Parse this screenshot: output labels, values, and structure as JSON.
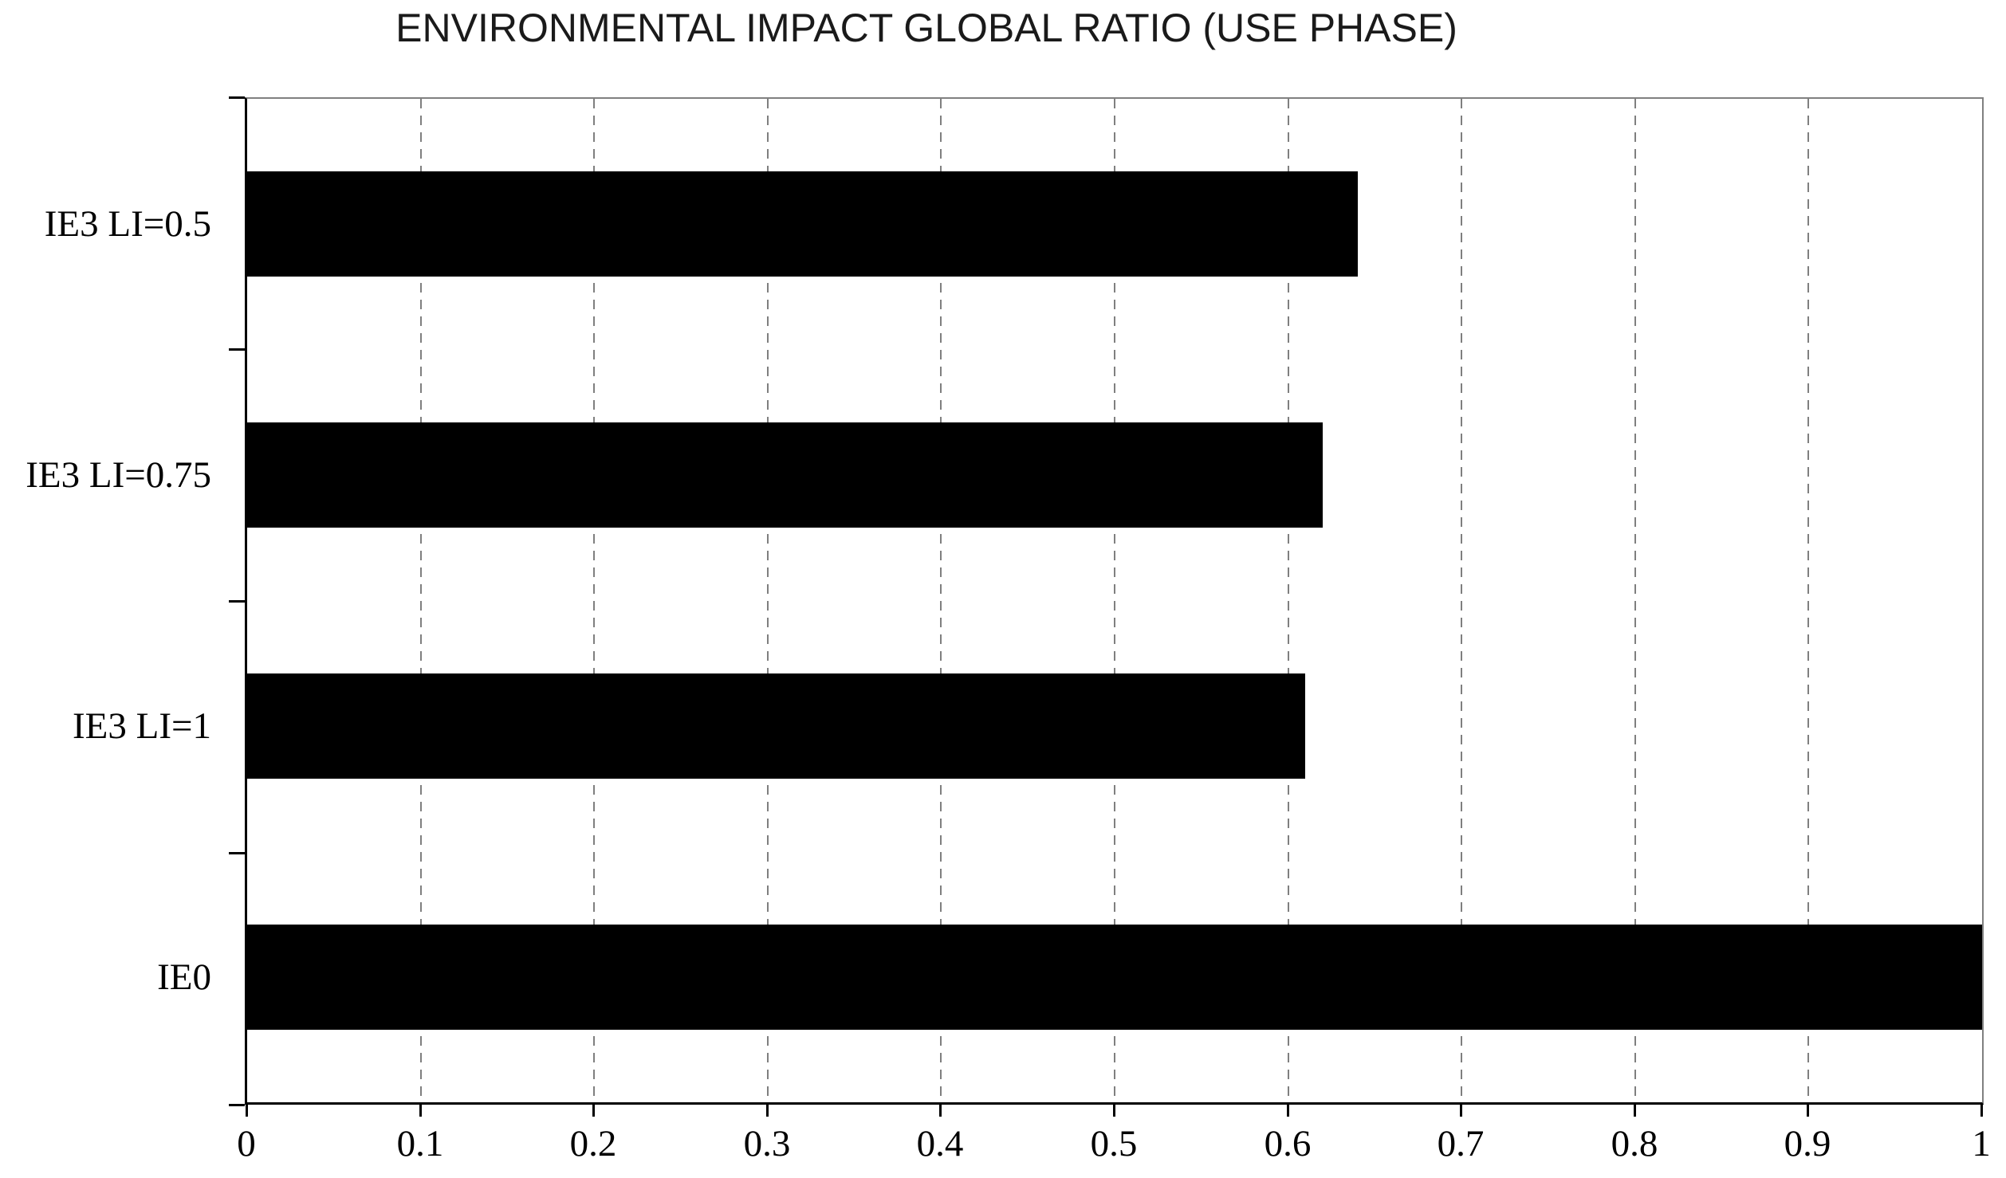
{
  "chart_data": {
    "type": "bar",
    "orientation": "horizontal",
    "title": "ENVIRONMENTAL IMPACT GLOBAL RATIO (USE PHASE)",
    "categories": [
      "IE3 LI=0.5",
      "IE3 LI=0.75",
      "IE3 LI=1",
      "IE0"
    ],
    "values": [
      0.64,
      0.62,
      0.61,
      1.0
    ],
    "xlabel": "",
    "ylabel": "",
    "xlim": [
      0,
      1
    ],
    "x_ticks": [
      0,
      0.1,
      0.2,
      0.3,
      0.4,
      0.5,
      0.6,
      0.7,
      0.8,
      0.9,
      1
    ],
    "x_tick_labels": [
      "0",
      "0.1",
      "0.2",
      "0.3",
      "0.4",
      "0.5",
      "0.6",
      "0.7",
      "0.8",
      "0.9",
      "1"
    ],
    "grid": "vertical-dashed",
    "legend": "none",
    "colors": {
      "bar": "#000000",
      "grid": "#7f7f7f",
      "axis": "#000000",
      "plot_border": "#808080",
      "background": "#ffffff"
    }
  }
}
